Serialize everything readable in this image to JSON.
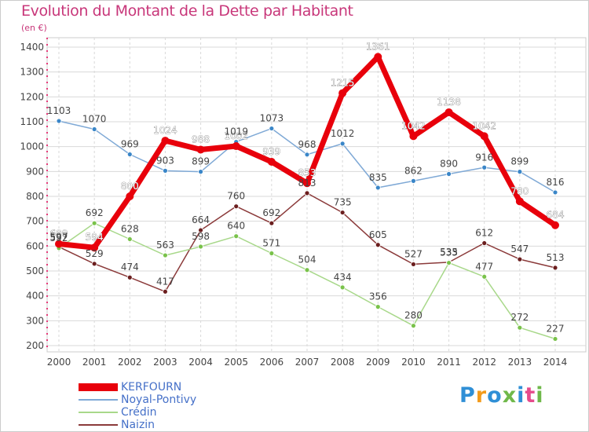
{
  "header": {
    "title": "Evolution du Montant de la Dette par Habitant",
    "subtitle": "(en €)"
  },
  "colors": {
    "title": "#c8377a",
    "axis": "#e63b7a",
    "grid": "#d9d9d9",
    "label": "#444444"
  },
  "chart_data": {
    "type": "line",
    "title": "Evolution du Montant de la Dette par Habitant",
    "subtitle": "(en €)",
    "x": [
      "2000",
      "2001",
      "2002",
      "2003",
      "2004",
      "2005",
      "2006",
      "2007",
      "2008",
      "2009",
      "2010",
      "2011",
      "2012",
      "2013",
      "2014"
    ],
    "ylim": [
      200,
      1400
    ],
    "yticks": [
      200,
      300,
      400,
      500,
      600,
      700,
      800,
      900,
      1000,
      1100,
      1200,
      1300,
      1400
    ],
    "grid": true,
    "legend_position": "bottom-left",
    "series": [
      {
        "name": "KERFOURN",
        "color": "#e8000b",
        "marker_color": "#e8000b",
        "label_color": "#ffffff",
        "width": 7,
        "values": [
          609,
          594,
          800,
          1024,
          988,
          1002,
          939,
          853,
          1215,
          1361,
          1042,
          1138,
          1042,
          780,
          684
        ]
      },
      {
        "name": "Noyal-Pontivy",
        "color": "#7fa9d6",
        "marker_color": "#3a86c8",
        "label_color": "#444444",
        "width": 1.5,
        "values": [
          1103,
          1070,
          969,
          903,
          899,
          1019,
          1073,
          968,
          1012,
          835,
          862,
          890,
          916,
          899,
          816
        ]
      },
      {
        "name": "Crédin",
        "color": "#a8d88a",
        "marker_color": "#79c24a",
        "label_color": "#444444",
        "width": 1.5,
        "values": [
          592,
          692,
          628,
          563,
          598,
          640,
          571,
          504,
          434,
          356,
          280,
          533,
          477,
          272,
          227
        ]
      },
      {
        "name": "Naizin",
        "color": "#8b3a3a",
        "marker_color": "#6b1e1e",
        "label_color": "#444444",
        "width": 1.5,
        "values": [
          597,
          529,
          474,
          417,
          664,
          760,
          692,
          813,
          735,
          605,
          527,
          535,
          612,
          547,
          513
        ]
      }
    ]
  },
  "logo": {
    "letters": [
      "P",
      "r",
      "o",
      "x",
      "i",
      "t",
      "i"
    ]
  }
}
